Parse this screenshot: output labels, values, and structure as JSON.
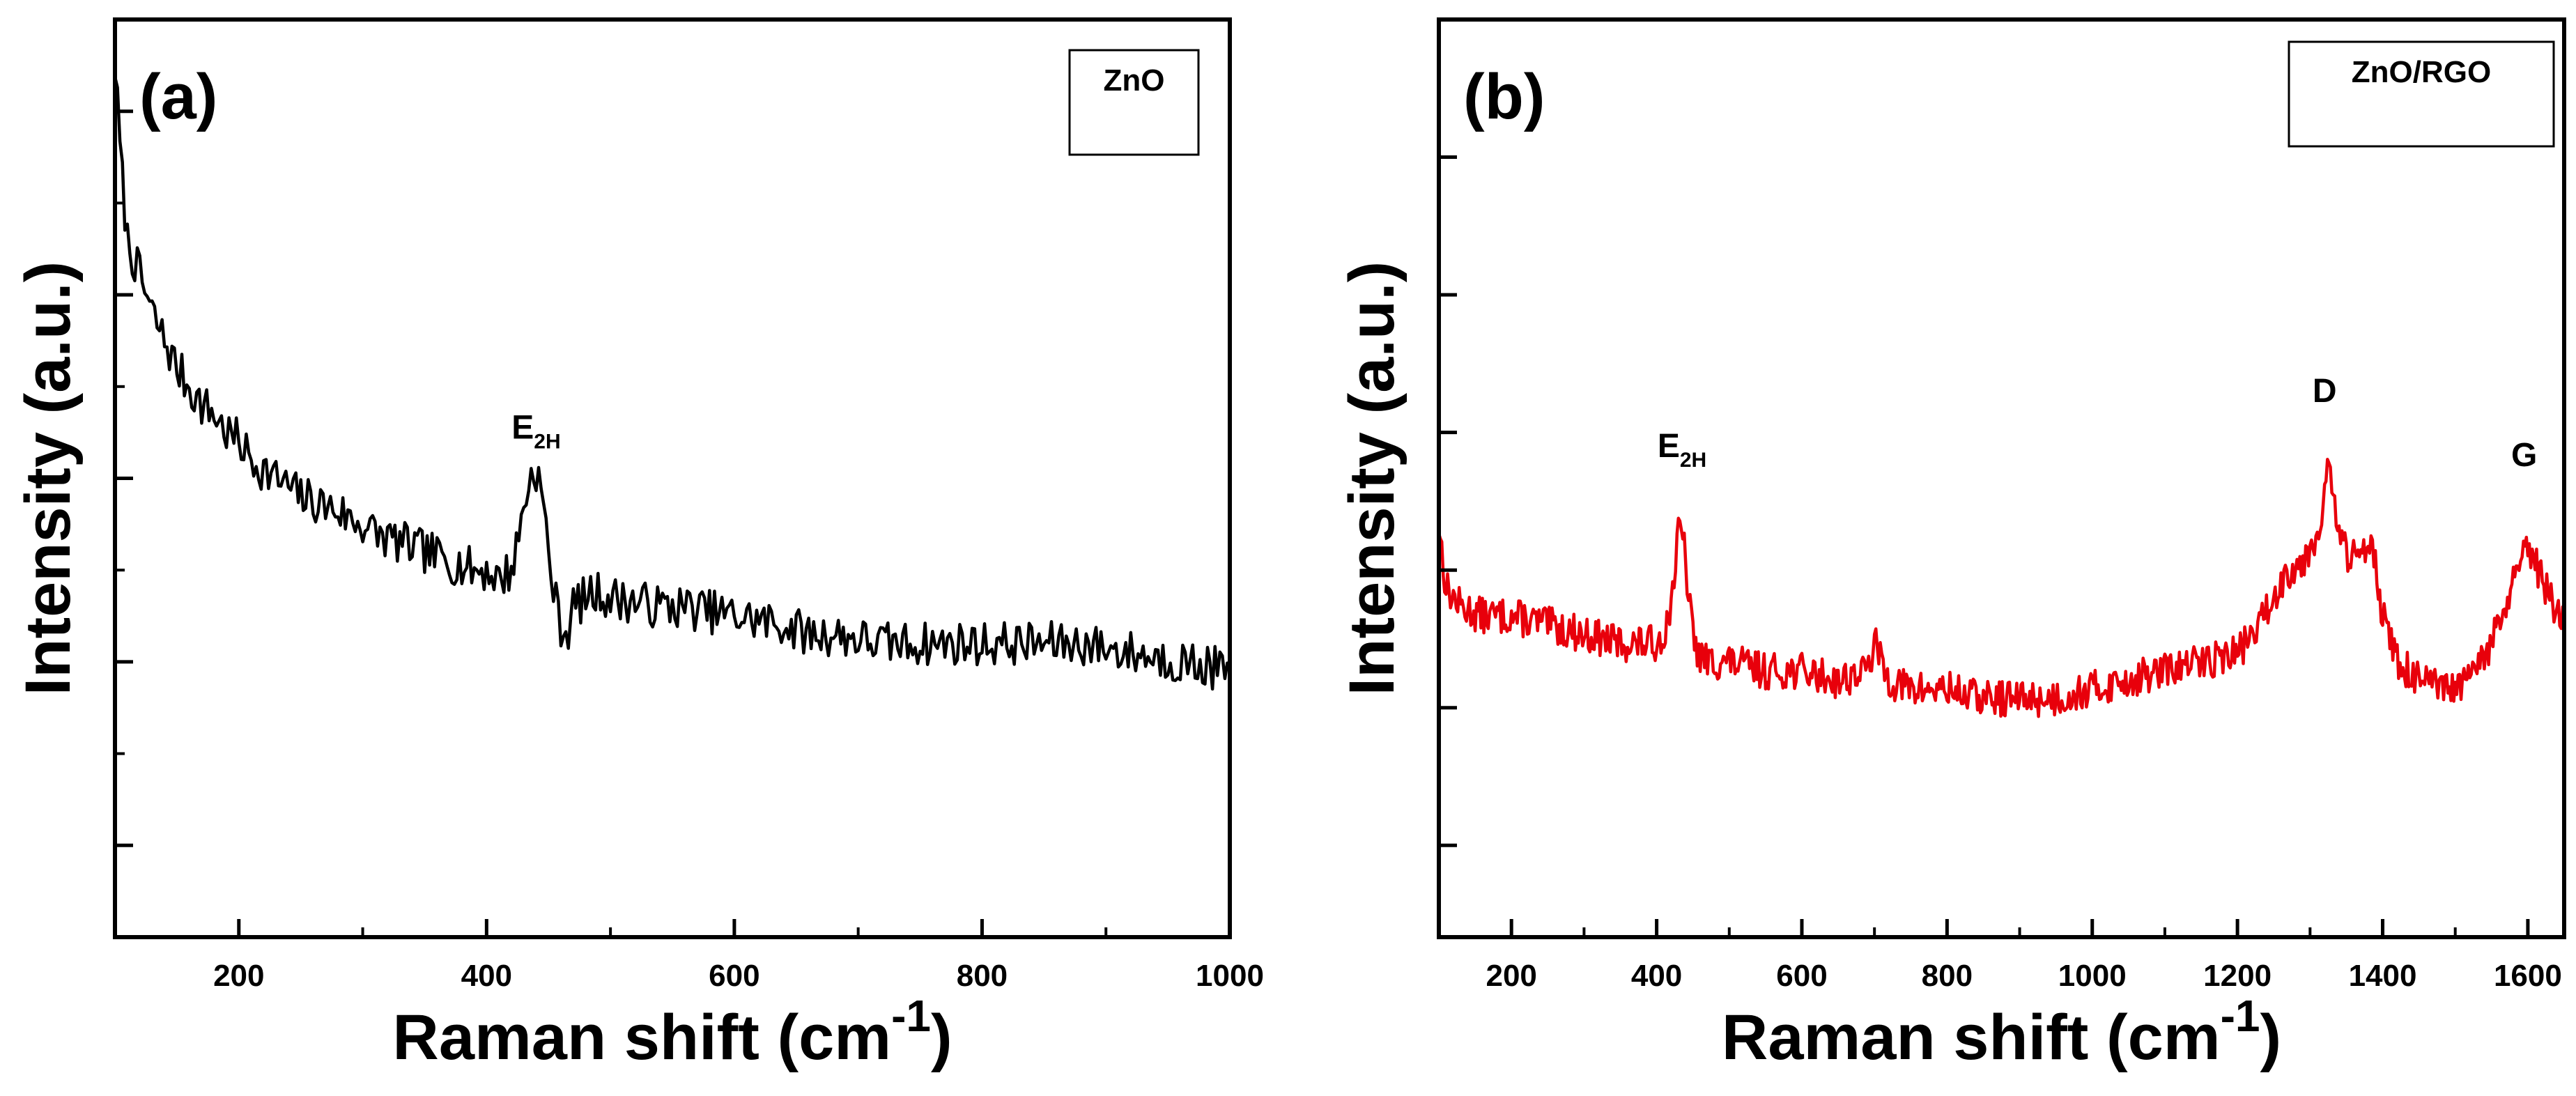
{
  "chart_data": [
    {
      "type": "line",
      "panel_label": "(a)",
      "legend": "ZnO",
      "legend_position": "top-right",
      "xlabel": "Raman shift (cm",
      "xlabel_sup": "-1",
      "xlabel_close": ")",
      "ylabel": "Intensity (a.u.)",
      "xlim": [
        100,
        1000
      ],
      "ylim": [
        0,
        100
      ],
      "xticks": [
        200,
        400,
        600,
        800,
        1000
      ],
      "xtick_labels": [
        "200",
        "400",
        "600",
        "800",
        "1000"
      ],
      "yticks_major": [
        10,
        30,
        50,
        70,
        90
      ],
      "yticks_minor": [
        0,
        20,
        40,
        60,
        80,
        100
      ],
      "line_color": "#000000",
      "noise": 2.4,
      "seed": 7,
      "annotations": [
        {
          "main": "E",
          "sub": "2H",
          "x": 440,
          "y": 49
        }
      ],
      "series": [
        {
          "name": "ZnO",
          "x": [
            100,
            105,
            110,
            120,
            130,
            140,
            150,
            160,
            170,
            180,
            190,
            200,
            210,
            220,
            230,
            240,
            250,
            260,
            270,
            280,
            290,
            300,
            310,
            320,
            330,
            340,
            350,
            360,
            370,
            380,
            390,
            400,
            410,
            420,
            425,
            430,
            435,
            440,
            445,
            450,
            455,
            460,
            465,
            470,
            480,
            490,
            500,
            520,
            540,
            560,
            580,
            600,
            620,
            640,
            660,
            680,
            700,
            720,
            740,
            760,
            780,
            800,
            820,
            840,
            860,
            880,
            900,
            920,
            940,
            960,
            980,
            1000
          ],
          "y": [
            95,
            84,
            76,
            72,
            68,
            65,
            62,
            60,
            58,
            57,
            55,
            54,
            52,
            51,
            50,
            49,
            48,
            47.5,
            47,
            46.5,
            45.5,
            45,
            44,
            43.5,
            43,
            42.5,
            42,
            41.5,
            41,
            40.5,
            40,
            40,
            39,
            40,
            43,
            47,
            50,
            51,
            48,
            42,
            37,
            34,
            33,
            36,
            37,
            37.5,
            37,
            36.5,
            36,
            36,
            35.5,
            35,
            34.5,
            34,
            33,
            33,
            32.5,
            32,
            32,
            32,
            32,
            32,
            32,
            32,
            32,
            32,
            31.5,
            31,
            30.5,
            30,
            29.5,
            29
          ]
        }
      ]
    },
    {
      "type": "line",
      "panel_label": "(b)",
      "legend": "ZnO/RGO",
      "legend_position": "top-right",
      "xlabel": "Raman shift (cm",
      "xlabel_sup": "-1",
      "xlabel_close": ")",
      "ylabel": "Intensity (a.u.)",
      "xlim": [
        100,
        1650
      ],
      "ylim": [
        0,
        100
      ],
      "xticks": [
        200,
        400,
        600,
        800,
        1000,
        1200,
        1400,
        1600
      ],
      "xtick_labels": [
        "200",
        "400",
        "600",
        "800",
        "1000",
        "1200",
        "1400",
        "1600"
      ],
      "yticks_major": [
        10,
        25,
        40,
        55,
        70,
        85,
        100
      ],
      "yticks_minor": [],
      "line_color": "#e8000b",
      "noise": 2.0,
      "seed": 13,
      "annotations": [
        {
          "main": "E",
          "sub": "2H",
          "x": 435,
          "y": 47
        },
        {
          "main": "D",
          "sub": "",
          "x": 1320,
          "y": 53
        },
        {
          "main": "G",
          "sub": "",
          "x": 1595,
          "y": 46
        }
      ],
      "series": [
        {
          "name": "ZnO/RGO",
          "x": [
            100,
            110,
            130,
            160,
            200,
            250,
            300,
            350,
            400,
            415,
            425,
            430,
            435,
            440,
            445,
            455,
            470,
            500,
            550,
            600,
            650,
            690,
            700,
            710,
            720,
            750,
            800,
            850,
            900,
            950,
            1000,
            1050,
            1100,
            1150,
            1200,
            1230,
            1250,
            1270,
            1290,
            1310,
            1325,
            1340,
            1355,
            1370,
            1385,
            1400,
            1420,
            1450,
            1480,
            1500,
            1520,
            1550,
            1570,
            1585,
            1600,
            1615,
            1630,
            1650
          ],
          "y": [
            45,
            38,
            36,
            35,
            35,
            34,
            33,
            32,
            32,
            34,
            40,
            44,
            44,
            41,
            36,
            31,
            30,
            30,
            29,
            29,
            28,
            29,
            32,
            30,
            28,
            27,
            27,
            26,
            26,
            26,
            27,
            28,
            29,
            30,
            31,
            34,
            37,
            40,
            41,
            44,
            51,
            44,
            41,
            42,
            44,
            35,
            30,
            28,
            27,
            27,
            28,
            32,
            36,
            40,
            42,
            40,
            37,
            34
          ]
        }
      ]
    }
  ]
}
